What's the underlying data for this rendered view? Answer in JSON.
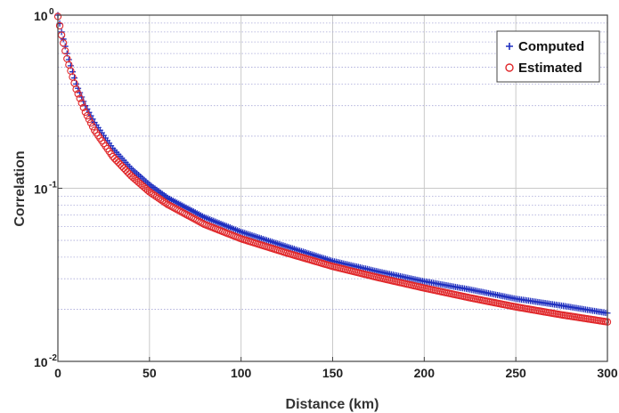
{
  "chart_data": {
    "type": "scatter",
    "title": "",
    "xlabel": "Distance (km)",
    "ylabel": "Correlation",
    "xlim": [
      0,
      300
    ],
    "ylim": [
      0.01,
      1
    ],
    "yscale": "log",
    "grid": true,
    "legend_position": "top-right",
    "x_ticks": [
      {
        "value": 0,
        "label": "0"
      },
      {
        "value": 50,
        "label": "50"
      },
      {
        "value": 100,
        "label": "100"
      },
      {
        "value": 150,
        "label": "150"
      },
      {
        "value": 200,
        "label": "200"
      },
      {
        "value": 250,
        "label": "250"
      },
      {
        "value": 300,
        "label": "300"
      }
    ],
    "y_ticks": [
      {
        "value": 1,
        "base": "10",
        "exp": "0"
      },
      {
        "value": 0.1,
        "base": "10",
        "exp": "-1"
      },
      {
        "value": 0.01,
        "base": "10",
        "exp": "-2"
      }
    ],
    "series": [
      {
        "name": "Computed",
        "marker": "plus",
        "color": "#1f2fbf",
        "x": [
          0,
          2,
          5,
          10,
          15,
          20,
          30,
          40,
          50,
          60,
          80,
          100,
          125,
          150,
          175,
          200,
          225,
          250,
          275,
          300
        ],
        "y": [
          1,
          0.8,
          0.6,
          0.4,
          0.3,
          0.24,
          0.17,
          0.13,
          0.105,
          0.088,
          0.068,
          0.056,
          0.046,
          0.038,
          0.033,
          0.029,
          0.026,
          0.023,
          0.021,
          0.019
        ]
      },
      {
        "name": "Estimated",
        "marker": "circle",
        "color": "#e0282b",
        "x": [
          0,
          2,
          5,
          10,
          15,
          20,
          30,
          40,
          50,
          60,
          80,
          100,
          125,
          150,
          175,
          200,
          225,
          250,
          275,
          300
        ],
        "y": [
          1,
          0.78,
          0.57,
          0.38,
          0.28,
          0.22,
          0.155,
          0.12,
          0.097,
          0.082,
          0.063,
          0.052,
          0.043,
          0.036,
          0.031,
          0.027,
          0.0237,
          0.021,
          0.0189,
          0.0172
        ]
      }
    ]
  }
}
